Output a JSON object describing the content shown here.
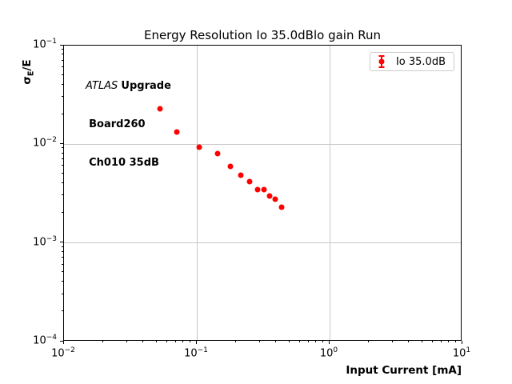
{
  "chart_data": {
    "type": "scatter",
    "title": "Energy Resolution Io 35.0dBlo gain Run",
    "xlabel": "Input Current [mA]",
    "ylabel": {
      "base": "σ",
      "sub": "E",
      "rest": "/E"
    },
    "xscale": "log",
    "yscale": "log",
    "xlim": [
      0.01,
      10
    ],
    "ylim": [
      0.0001,
      0.1
    ],
    "x_tick_exponents": [
      -2,
      -1,
      0,
      1
    ],
    "y_tick_exponents": [
      -1,
      -2,
      -3,
      -4
    ],
    "x_grid_exponents": [
      -1,
      0
    ],
    "y_grid_exponents": [
      -2,
      -3
    ],
    "grid": true,
    "legend": {
      "label": "Io 35.0dB",
      "position": "upper right",
      "marker": "errorbar-circle"
    },
    "series": [
      {
        "name": "Io 35.0dB",
        "color": "#ff0000",
        "x": [
          0.053,
          0.071,
          0.104,
          0.143,
          0.179,
          0.214,
          0.25,
          0.287,
          0.321,
          0.353,
          0.389,
          0.435
        ],
        "y": [
          0.0229,
          0.0133,
          0.0094,
          0.008,
          0.006,
          0.0049,
          0.0042,
          0.0035,
          0.0035,
          0.003,
          0.0028,
          0.0023
        ]
      }
    ]
  },
  "annotation": {
    "line1_italic": "ATLAS",
    "line1_bold": "Upgrade",
    "line2": "Board260",
    "line3": "Ch010 35dB"
  },
  "colors": {
    "marker": "#ff0000",
    "grid": "#c8c8c8",
    "spine": "#000000",
    "legend_border": "#cccccc"
  }
}
